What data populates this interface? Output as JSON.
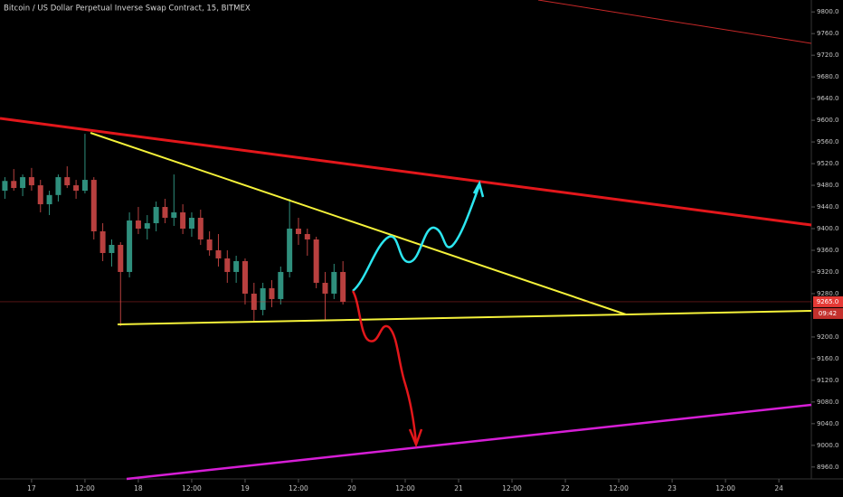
{
  "chart_data": {
    "type": "candlestick",
    "title": "Bitcoin / US Dollar Perpetual Inverse Swap Contract, 15, BITMEX",
    "x": [
      -6,
      -4,
      -2,
      0,
      2,
      4,
      6,
      8,
      10,
      12,
      14,
      16,
      18,
      20,
      22,
      24,
      26,
      28,
      30,
      32,
      34,
      36,
      38,
      40,
      42,
      44,
      46,
      48,
      50,
      52,
      54,
      56,
      58,
      60,
      62,
      64,
      66,
      68,
      70
    ],
    "open": [
      9470,
      9488,
      9475,
      9495,
      9480,
      9445,
      9462,
      9495,
      9480,
      9470,
      9490,
      9395,
      9355,
      9370,
      9320,
      9415,
      9400,
      9410,
      9440,
      9420,
      9430,
      9400,
      9420,
      9380,
      9360,
      9345,
      9320,
      9340,
      9280,
      9250,
      9290,
      9270,
      9320,
      9400,
      9390,
      9380,
      9300,
      9280,
      9320
    ],
    "high": [
      9495,
      9510,
      9500,
      9512,
      9490,
      9470,
      9500,
      9515,
      9490,
      9575,
      9495,
      9410,
      9380,
      9375,
      9430,
      9440,
      9425,
      9450,
      9455,
      9500,
      9445,
      9430,
      9435,
      9395,
      9390,
      9360,
      9350,
      9345,
      9300,
      9300,
      9305,
      9330,
      9455,
      9420,
      9400,
      9385,
      9320,
      9335,
      9340
    ],
    "low": [
      9455,
      9470,
      9460,
      9470,
      9430,
      9425,
      9450,
      9475,
      9455,
      9465,
      9380,
      9340,
      9330,
      9220,
      9310,
      9390,
      9380,
      9395,
      9410,
      9405,
      9390,
      9385,
      9370,
      9350,
      9330,
      9300,
      9300,
      9260,
      9230,
      9240,
      9255,
      9260,
      9310,
      9370,
      9350,
      9290,
      9230,
      9270,
      9260
    ],
    "close": [
      9488,
      9475,
      9495,
      9480,
      9445,
      9462,
      9495,
      9480,
      9470,
      9490,
      9395,
      9355,
      9370,
      9320,
      9415,
      9400,
      9410,
      9440,
      9420,
      9430,
      9400,
      9420,
      9380,
      9360,
      9345,
      9320,
      9340,
      9280,
      9250,
      9290,
      9270,
      9320,
      9400,
      9390,
      9380,
      9300,
      9280,
      9320,
      9265
    ],
    "up_color": "#2f8f7d",
    "down_color": "#b8403f",
    "xlim": [
      -7.1,
      175.3
    ],
    "xticks": [
      {
        "value": 0,
        "label": "17"
      },
      {
        "value": 12,
        "label": "12:00"
      },
      {
        "value": 24,
        "label": "18"
      },
      {
        "value": 36,
        "label": "12:00"
      },
      {
        "value": 48,
        "label": "19"
      },
      {
        "value": 60,
        "label": "12:00"
      },
      {
        "value": 72,
        "label": "20"
      },
      {
        "value": 84,
        "label": "12:00"
      },
      {
        "value": 96,
        "label": "21"
      },
      {
        "value": 108,
        "label": "12:00"
      },
      {
        "value": 120,
        "label": "22"
      },
      {
        "value": 132,
        "label": "12:00"
      },
      {
        "value": 144,
        "label": "23"
      },
      {
        "value": 156,
        "label": "12:00"
      },
      {
        "value": 168,
        "label": "24"
      }
    ],
    "ylim": [
      8938,
      9822
    ],
    "yticks": [
      {
        "value": 9800,
        "label": "9800.0"
      },
      {
        "value": 9760,
        "label": "9760.0"
      },
      {
        "value": 9720,
        "label": "9720.0"
      },
      {
        "value": 9680,
        "label": "9680.0"
      },
      {
        "value": 9640,
        "label": "9640.0"
      },
      {
        "value": 9600,
        "label": "9600.0"
      },
      {
        "value": 9560,
        "label": "9560.0"
      },
      {
        "value": 9520,
        "label": "9520.0"
      },
      {
        "value": 9480,
        "label": "9480.0"
      },
      {
        "value": 9440,
        "label": "9440.0"
      },
      {
        "value": 9400,
        "label": "9400.0"
      },
      {
        "value": 9360,
        "label": "9360.0"
      },
      {
        "value": 9320,
        "label": "9320.0"
      },
      {
        "value": 9280,
        "label": "9280.0"
      },
      {
        "value": 9200,
        "label": "9200.0"
      },
      {
        "value": 9160,
        "label": "9160.0"
      },
      {
        "value": 9120,
        "label": "9120.0"
      },
      {
        "value": 9080,
        "label": "9080.0"
      },
      {
        "value": 9040,
        "label": "9040.0"
      },
      {
        "value": 9000,
        "label": "9000.0"
      },
      {
        "value": 8960,
        "label": "8960.0"
      }
    ],
    "last_price": {
      "value": 9265,
      "label": "9265.0",
      "countdown": "09:42",
      "color": "#e53935"
    }
  }
}
